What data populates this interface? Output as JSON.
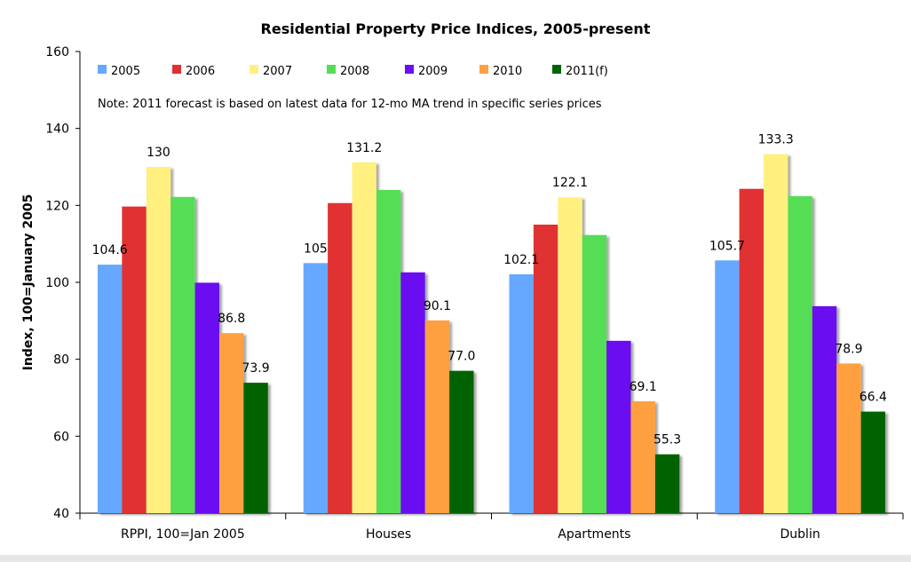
{
  "chart_data": {
    "type": "bar",
    "title": "Residential Property Price Indices, 2005-present",
    "xlabel": "",
    "ylabel": "Index, 100=January 2005",
    "ylim": [
      40,
      160
    ],
    "yticks": [
      40,
      60,
      80,
      100,
      120,
      140,
      160
    ],
    "grid": false,
    "legend_position": "top",
    "note": "Note: 2011 forecast is based on latest data for 12-mo MA trend in specific series prices",
    "categories": [
      "RPPI, 100=Jan 2005",
      "Houses",
      "Apartments",
      "Dublin"
    ],
    "series": [
      {
        "name": "2005",
        "color": "#66a8ff",
        "values": [
          104.6,
          105.0,
          102.1,
          105.7
        ],
        "labels": [
          "104.6",
          "105",
          "102.1",
          "105.7"
        ]
      },
      {
        "name": "2006",
        "color": "#e03030",
        "values": [
          119.7,
          120.6,
          115.0,
          124.3
        ],
        "labels": [
          "",
          "",
          "",
          ""
        ]
      },
      {
        "name": "2007",
        "color": "#fff080",
        "values": [
          130.0,
          131.2,
          122.1,
          133.3
        ],
        "labels": [
          "130",
          "131.2",
          "122.1",
          "133.3"
        ]
      },
      {
        "name": "2008",
        "color": "#55dd55",
        "values": [
          122.2,
          124.0,
          112.3,
          122.4
        ],
        "labels": [
          "",
          "",
          "",
          ""
        ]
      },
      {
        "name": "2009",
        "color": "#6a10f0",
        "values": [
          99.9,
          102.6,
          84.8,
          93.8
        ],
        "labels": [
          "",
          "",
          "",
          ""
        ]
      },
      {
        "name": "2010",
        "color": "#ffa040",
        "values": [
          86.8,
          90.1,
          69.1,
          78.9
        ],
        "labels": [
          "86.8",
          "90.1",
          "69.1",
          "78.9"
        ]
      },
      {
        "name": "2011(f)",
        "color": "#006400",
        "values": [
          73.9,
          77.0,
          55.3,
          66.4
        ],
        "labels": [
          "73.9",
          "77.0",
          "55.3",
          "66.4"
        ]
      }
    ]
  }
}
